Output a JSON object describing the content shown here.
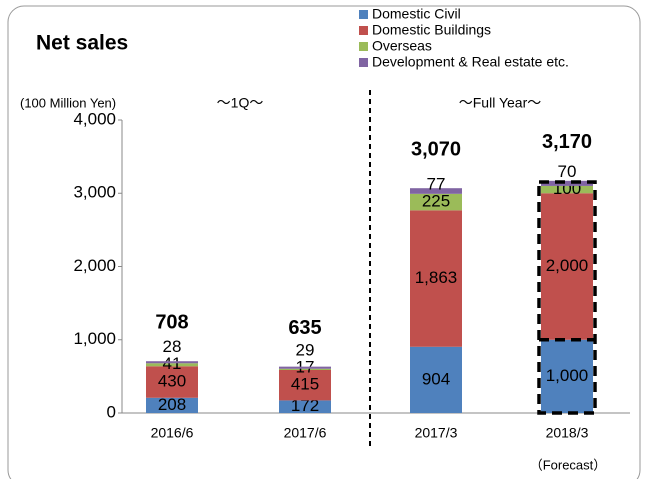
{
  "chart_data": {
    "type": "stacked_bar",
    "title": "Net sales",
    "y_label": "(100 Million Yen)",
    "annotations": [
      "～1Q～",
      "～Full Year～",
      "（Forecast）"
    ],
    "categories": [
      "2016/6",
      "2017/6",
      "2017/3",
      "2018/3"
    ],
    "series": [
      {
        "name": "Domestic Civil",
        "color": "#4f81bd",
        "values": [
          208,
          172,
          904,
          1000
        ],
        "value_labels": [
          "208",
          "172",
          "904",
          "1,000"
        ]
      },
      {
        "name": "Domestic Buildings",
        "color": "#c0504d",
        "values": [
          430,
          415,
          1863,
          2000
        ],
        "value_labels": [
          "430",
          "415",
          "1,863",
          "2,000"
        ]
      },
      {
        "name": "Overseas",
        "color": "#9bbb59",
        "values": [
          41,
          17,
          225,
          100
        ],
        "value_labels": [
          "41",
          "17",
          "225",
          "100"
        ]
      },
      {
        "name": "Development & Real estate etc.",
        "color": "#8064a2",
        "values": [
          28,
          29,
          77,
          70
        ],
        "value_labels": [
          "28",
          "29",
          "77",
          "70"
        ]
      }
    ],
    "totals": {
      "values": [
        708,
        635,
        3070,
        3170
      ],
      "value_labels": [
        "708",
        "635",
        "3,070",
        "3,170"
      ]
    },
    "ylim": [
      0,
      4000
    ],
    "yticks": [
      0,
      {
        "value": 1000,
        "label": "1,000"
      },
      {
        "value": 2000,
        "label": "2,000"
      },
      {
        "value": 3000,
        "label": "3,000"
      },
      {
        "value": 4000,
        "label": "4,000"
      }
    ],
    "legend": "top-right"
  }
}
